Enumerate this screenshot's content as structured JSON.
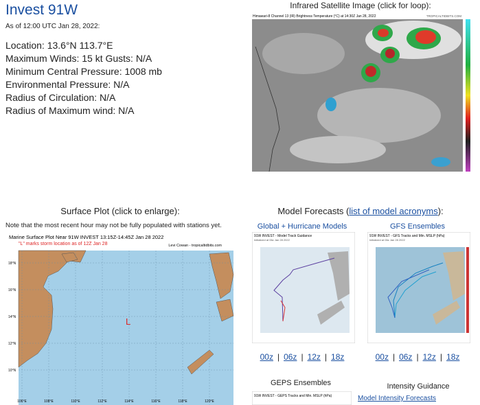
{
  "header": {
    "title": "Invest 91W",
    "as_of": "As of 12:00 UTC Jan 28, 2022:"
  },
  "details": [
    "Location: 13.6°N 113.7°E",
    "Maximum Winds: 15 kt  Gusts: N/A",
    "Minimum Central Pressure: 1008 mb",
    "Environmental Pressure: N/A",
    "Radius of Circulation: N/A",
    "Radius of Maximum wind: N/A"
  ],
  "satellite": {
    "heading": "Infrared Satellite Image (click for loop):",
    "image_title": "Himawari-8 Channel 13 (IR) Brightness Temperature (°C) at 14:30Z Jan 28, 2022",
    "credit": "TROPICALTIDBITS.COM"
  },
  "surface_plot": {
    "heading": "Surface Plot (click to enlarge):",
    "note": "Note that the most recent hour may not be fully populated with stations yet.",
    "image_title": "Marine Surface Plot Near 91W INVEST 13:15Z-14:45Z Jan 28 2022",
    "image_subtitle": "\"L\" marks storm location as of 12Z Jan 28",
    "credit": "Levi Cowan - tropicaltidbits.com",
    "storm_marker": "L",
    "lon_labels": [
      "106°E",
      "108°E",
      "110°E",
      "112°E",
      "114°E",
      "116°E",
      "118°E",
      "120°E"
    ],
    "lat_labels": [
      "18°N",
      "16°N",
      "14°N",
      "12°N",
      "10°N"
    ]
  },
  "models": {
    "heading_before": "Model Forecasts (",
    "heading_link": "list of model acronyms",
    "heading_after": "):",
    "separator": "|",
    "panels": [
      {
        "title": "Global + Hurricane Models",
        "image_title": "91W INVEST - Model Track Guidance",
        "image_subtitle": "Initialized at 06z Jan 28 2022",
        "links": [
          "00z",
          "06z",
          "12z",
          "18z"
        ]
      },
      {
        "title": "GFS Ensembles",
        "image_title": "91W INVEST - GFS Tracks and Min. MSLP (hPa)",
        "image_subtitle": "Initialized at 06z Jan 28 2022",
        "links": [
          "00z",
          "06z",
          "12z",
          "18z"
        ]
      }
    ],
    "geps": {
      "title": "GEPS Ensembles",
      "image_title": "91W INVEST - GEPS Tracks and Min. MSLP (hPa)"
    },
    "intensity": {
      "title": "Intensity Guidance",
      "link": "Model Intensity Forecasts"
    }
  }
}
